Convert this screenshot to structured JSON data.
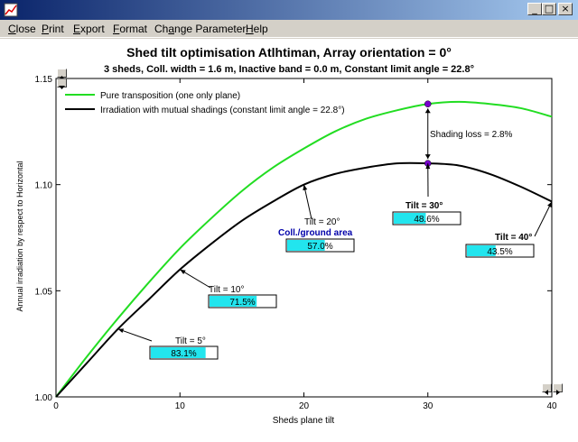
{
  "window": {
    "title": "",
    "buttons": [
      "_",
      "□",
      "×"
    ]
  },
  "menu": {
    "items": [
      {
        "label": "Close",
        "underline": "C",
        "rest": "lose"
      },
      {
        "label": "Print",
        "underline": "P",
        "rest": "rint"
      },
      {
        "label": "Export",
        "underline": "E",
        "rest": "xport"
      },
      {
        "label": "Format",
        "underline": "F",
        "rest": "ormat"
      },
      {
        "label": "Change Parameter",
        "pre": "Ch",
        "underline": "a",
        "rest": "nge Parameter"
      },
      {
        "label": "Help",
        "underline": "H",
        "rest": "elp"
      }
    ]
  },
  "chart_data": {
    "type": "line",
    "title": "Shed tilt optimisation Atlhtiman, Array orientation = 0°",
    "subtitle": "3 sheds,  Coll. width = 1.6 m, Inactive band = 0.0 m, Constant limit angle = 22.8°",
    "xlabel": "Sheds plane tilt",
    "ylabel": "Annual irradiation by respect to Horizontal",
    "xlim": [
      0,
      40
    ],
    "ylim": [
      1.0,
      1.15
    ],
    "xticks": [
      0,
      10,
      20,
      30,
      40
    ],
    "yticks": [
      1.0,
      1.05,
      1.1,
      1.15
    ],
    "ytick_labels": [
      "1.00",
      "1.05",
      "1.10",
      "1.15"
    ],
    "legend_position": "top-left",
    "series": [
      {
        "name": "Pure transposition (one only plane)",
        "color": "#22dd22",
        "x": [
          0,
          2.5,
          5,
          7.5,
          10,
          12.5,
          15,
          17.5,
          20,
          22.5,
          25,
          27.5,
          30,
          32.5,
          35,
          37.5,
          40
        ],
        "y": [
          1.0,
          1.019,
          1.037,
          1.054,
          1.07,
          1.084,
          1.097,
          1.108,
          1.117,
          1.125,
          1.131,
          1.135,
          1.138,
          1.139,
          1.138,
          1.136,
          1.132
        ]
      },
      {
        "name": "Irradiation with mutual shadings (constant limit angle = 22.8°)",
        "color": "#000000",
        "x": [
          0,
          2.5,
          5,
          7.5,
          10,
          12.5,
          15,
          17.5,
          20,
          22.5,
          25,
          27.5,
          30,
          32.5,
          35,
          37.5,
          40
        ],
        "y": [
          1.0,
          1.016,
          1.032,
          1.046,
          1.06,
          1.072,
          1.083,
          1.092,
          1.1,
          1.105,
          1.108,
          1.11,
          1.11,
          1.109,
          1.105,
          1.099,
          1.092
        ]
      }
    ],
    "markers": [
      {
        "x": 30,
        "y": 1.138,
        "color": "#7700cc"
      },
      {
        "x": 30,
        "y": 1.11,
        "color": "#7700cc"
      }
    ],
    "shading_loss": {
      "label": "Shading loss = 2.8%",
      "x": 30,
      "y_top": 1.138,
      "y_bottom": 1.11
    },
    "ground_area_label": "Coll./ground area",
    "annotations": [
      {
        "tilt_label": "Tilt = 5°",
        "percent_label": "83.1%",
        "percent": 83.1,
        "bold": false,
        "target_x": 5,
        "target_y": 1.032
      },
      {
        "tilt_label": "Tilt = 10°",
        "percent_label": "71.5%",
        "percent": 71.5,
        "bold": false,
        "target_x": 10,
        "target_y": 1.06
      },
      {
        "tilt_label": "Tilt = 20°",
        "percent_label": "57.0%",
        "percent": 57.0,
        "bold": false,
        "target_x": 20,
        "target_y": 1.1
      },
      {
        "tilt_label": "Tilt = 30°",
        "percent_label": "48.6%",
        "percent": 48.6,
        "bold": true,
        "target_x": 30,
        "target_y": 1.11
      },
      {
        "tilt_label": "Tilt = 40°",
        "percent_label": "43.5%",
        "percent": 43.5,
        "bold": true,
        "target_x": 40,
        "target_y": 1.092
      }
    ]
  }
}
